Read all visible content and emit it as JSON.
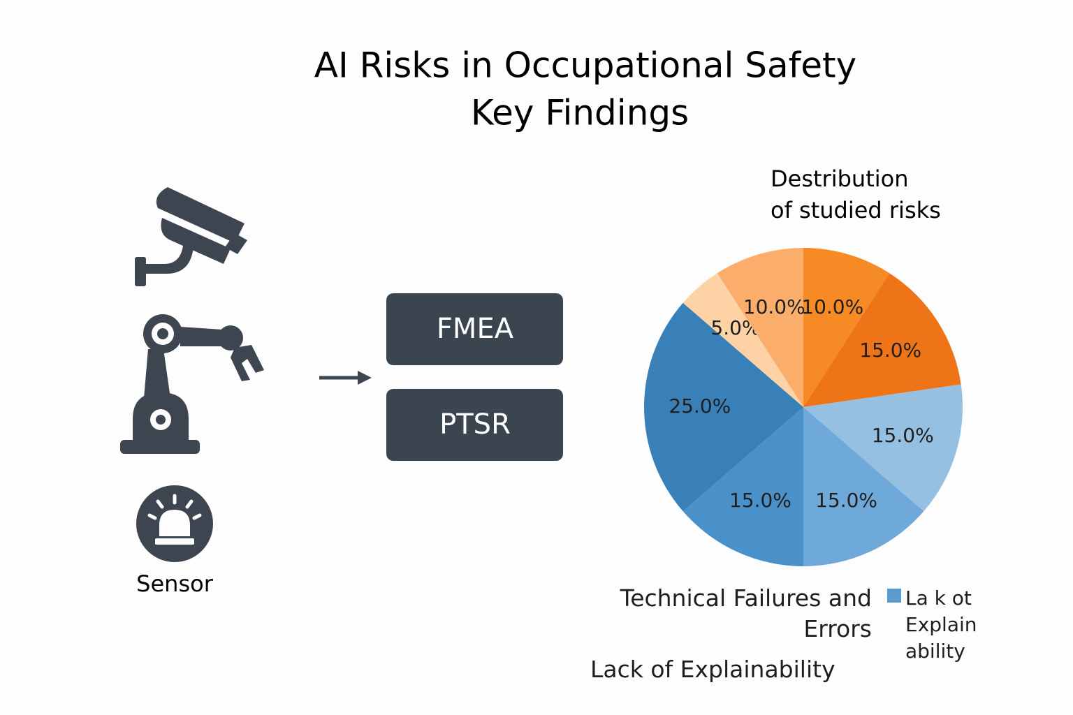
{
  "header": {
    "title": "AI Risks in Occupational Safety",
    "subtitle": "Key Findings"
  },
  "diagram": {
    "icon_label": "Sensor",
    "boxes": [
      "FMEA",
      "PTSR"
    ]
  },
  "chart_data": {
    "type": "pie",
    "title": [
      "Destribution",
      "of studied risks"
    ],
    "categories": [
      null,
      null,
      null,
      null,
      null,
      null,
      null,
      null
    ],
    "values": [
      10,
      15,
      15,
      15,
      15,
      25,
      5,
      10
    ],
    "value_labels": [
      "10.0%",
      "15.0%",
      "15.0%",
      "15.0%",
      "15.0%",
      "25.0%",
      "5.0%",
      "10.0%"
    ],
    "colors": [
      "#f68a24",
      "#ef7418",
      "#96c0e1",
      "#6ea9da",
      "#4b91c9",
      "#3a80b8",
      "#fdd3a6",
      "#fbae6c"
    ],
    "annotations": [
      "Technical Failures and Errors",
      "Lack of Explainability"
    ],
    "legend": {
      "label": "La k ot Explain ability",
      "color": "#5a9bd0"
    }
  }
}
